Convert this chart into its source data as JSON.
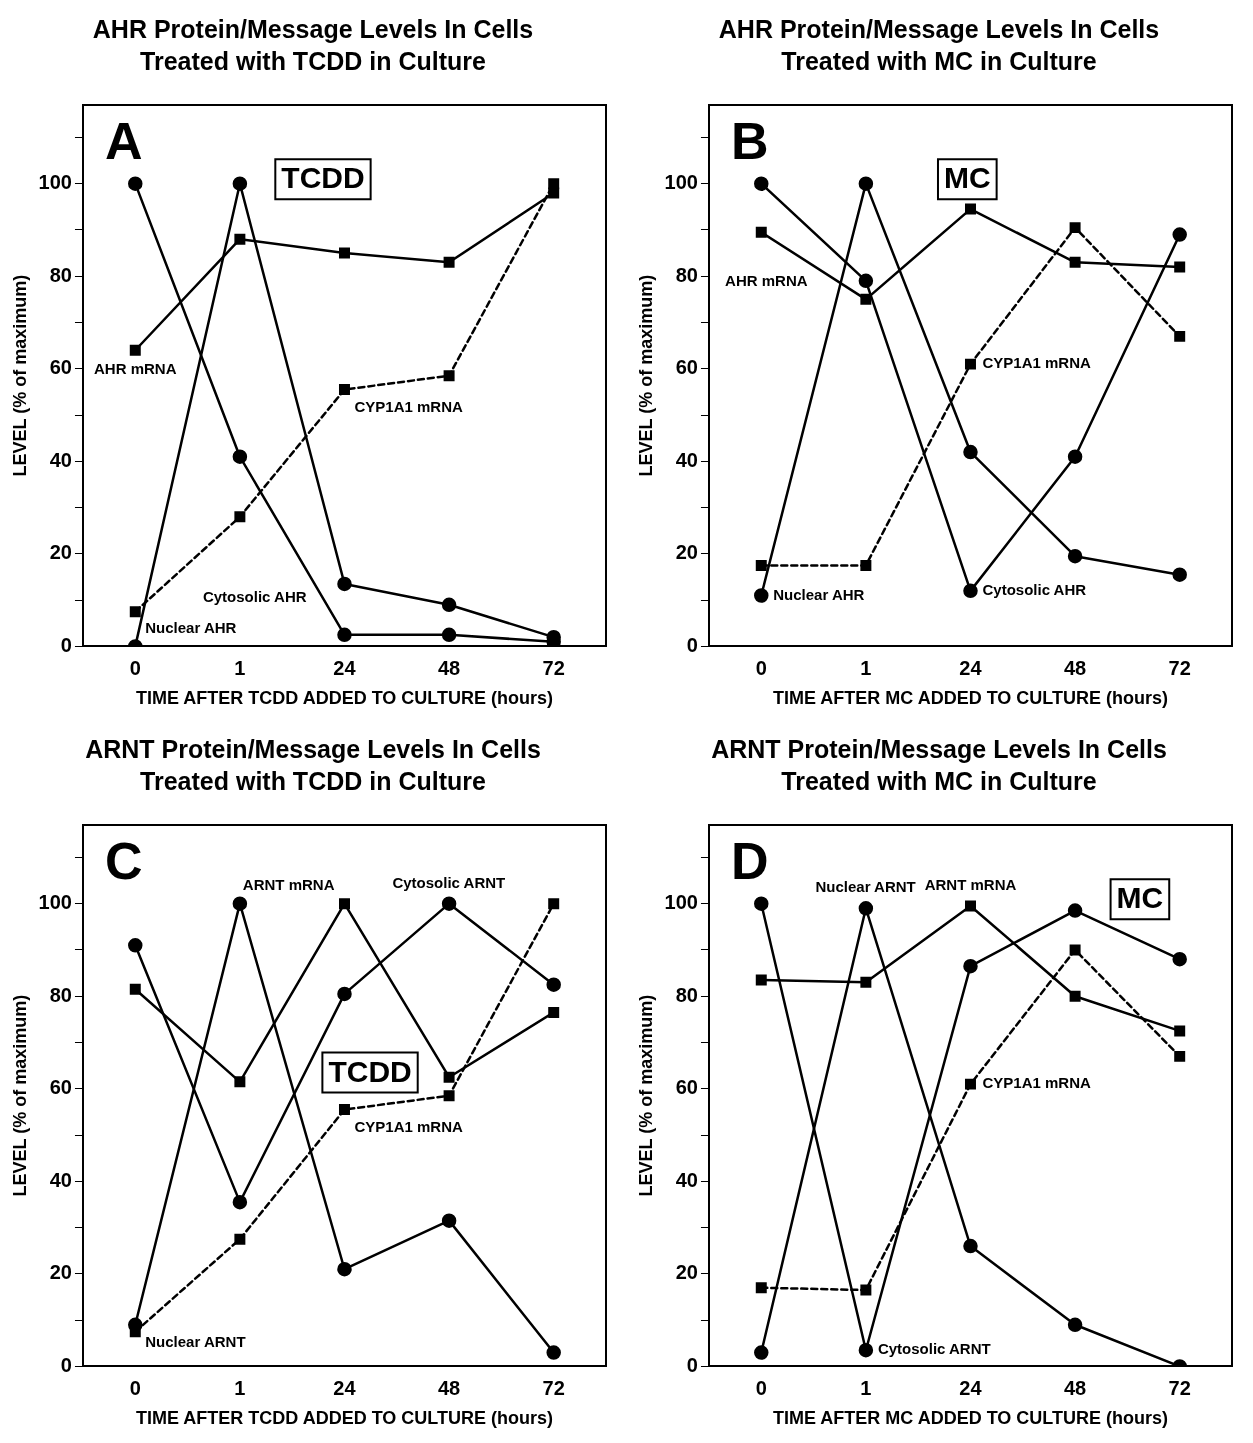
{
  "chart_data": [
    {
      "type": "line",
      "title": "AHR Protein/Message Levels In Cells Treated with TCDD in Culture",
      "xlabel": "TIME AFTER TCDD ADDED TO CULTURE (hours)",
      "ylabel": "LEVEL (% of maximum)",
      "categories": [
        "0",
        "1",
        "24",
        "48",
        "72"
      ],
      "series": [
        {
          "name": "Cytosolic AHR",
          "color": "#000000",
          "marker": "circle",
          "line_style": "solid",
          "values": [
            100,
            41,
            2.5,
            2.5,
            1
          ]
        },
        {
          "name": "Nuclear AHR",
          "color": "#000000",
          "marker": "circle",
          "line_style": "solid",
          "values": [
            0,
            100,
            13.5,
            9,
            2
          ]
        },
        {
          "name": "AHR mRNA",
          "color": "#000000",
          "marker": "square",
          "line_style": "solid",
          "values": [
            64,
            88,
            85,
            83,
            98
          ]
        },
        {
          "name": "CYP1A1 mRNA",
          "color": "#000000",
          "marker": "square",
          "line_style": "dashed",
          "values": [
            7.5,
            28,
            55.5,
            58.5,
            100
          ]
        }
      ],
      "ylim": [
        0,
        117
      ],
      "yticks": [
        0,
        {
          "value": 10,
          "label": null
        },
        20,
        {
          "value": 30,
          "label": null
        },
        40,
        {
          "value": 50,
          "label": null
        },
        60,
        {
          "value": 70,
          "label": null
        },
        80,
        {
          "value": 90,
          "label": null
        },
        100,
        {
          "value": 110,
          "label": null
        }
      ],
      "grid": false,
      "legend": false,
      "annotations": [
        "A",
        "TCDD"
      ]
    },
    {
      "type": "line",
      "title": "AHR Protein/Message Levels In Cells Treated with MC in Culture",
      "xlabel": "TIME AFTER MC ADDED TO CULTURE (hours)",
      "ylabel": "LEVEL (% of maximum)",
      "categories": [
        "0",
        "1",
        "24",
        "48",
        "72"
      ],
      "series": [
        {
          "name": "Cytosolic AHR",
          "color": "#000000",
          "marker": "circle",
          "line_style": "solid",
          "values": [
            100,
            79,
            12,
            41,
            89
          ]
        },
        {
          "name": "Nuclear AHR",
          "color": "#000000",
          "marker": "circle",
          "line_style": "solid",
          "values": [
            11,
            100,
            42,
            19.5,
            15.5
          ]
        },
        {
          "name": "AHR mRNA",
          "color": "#000000",
          "marker": "square",
          "line_style": "solid",
          "values": [
            89.5,
            75,
            94.5,
            83,
            82
          ]
        },
        {
          "name": "CYP1A1 mRNA",
          "color": "#000000",
          "marker": "square",
          "line_style": "dashed",
          "values": [
            17.5,
            17.5,
            61,
            90.5,
            67
          ]
        }
      ],
      "ylim": [
        0,
        117
      ],
      "yticks": [
        0,
        {
          "value": 10,
          "label": null
        },
        20,
        {
          "value": 30,
          "label": null
        },
        40,
        {
          "value": 50,
          "label": null
        },
        60,
        {
          "value": 70,
          "label": null
        },
        80,
        {
          "value": 90,
          "label": null
        },
        100,
        {
          "value": 110,
          "label": null
        }
      ],
      "grid": false,
      "legend": false,
      "annotations": [
        "B",
        "MC"
      ]
    },
    {
      "type": "line",
      "title": "ARNT Protein/Message Levels In Cells Treated with TCDD in Culture",
      "xlabel": "TIME AFTER TCDD ADDED TO CULTURE (hours)",
      "ylabel": "LEVEL (% of maximum)",
      "categories": [
        "0",
        "1",
        "24",
        "48",
        "72"
      ],
      "series": [
        {
          "name": "Cytosolic ARNT",
          "color": "#000000",
          "marker": "circle",
          "line_style": "solid",
          "values": [
            91,
            35.5,
            80.5,
            100,
            82.5
          ]
        },
        {
          "name": "Nuclear ARNT",
          "color": "#000000",
          "marker": "circle",
          "line_style": "solid",
          "values": [
            9,
            100,
            21,
            31.5,
            3
          ]
        },
        {
          "name": "ARNT mRNA",
          "color": "#000000",
          "marker": "square",
          "line_style": "solid",
          "values": [
            81.5,
            61.5,
            100,
            62.5,
            76.5
          ]
        },
        {
          "name": "CYP1A1 mRNA",
          "color": "#000000",
          "marker": "square",
          "line_style": "dashed",
          "values": [
            7.5,
            27.5,
            55.5,
            58.5,
            100
          ]
        }
      ],
      "ylim": [
        0,
        117
      ],
      "yticks": [
        0,
        {
          "value": 10,
          "label": null
        },
        20,
        {
          "value": 30,
          "label": null
        },
        40,
        {
          "value": 50,
          "label": null
        },
        60,
        {
          "value": 70,
          "label": null
        },
        80,
        {
          "value": 90,
          "label": null
        },
        100,
        {
          "value": 110,
          "label": null
        }
      ],
      "grid": false,
      "legend": false,
      "annotations": [
        "C",
        "TCDD"
      ]
    },
    {
      "type": "line",
      "title": "ARNT Protein/Message Levels In Cells Treated with MC in Culture",
      "xlabel": "TIME AFTER MC ADDED TO CULTURE (hours)",
      "ylabel": "LEVEL (% of maximum)",
      "categories": [
        "0",
        "1",
        "24",
        "48",
        "72"
      ],
      "series": [
        {
          "name": "Cytosolic ARNT",
          "color": "#000000",
          "marker": "circle",
          "line_style": "solid",
          "values": [
            100,
            3.5,
            86.5,
            98.5,
            88
          ]
        },
        {
          "name": "Nuclear ARNT",
          "color": "#000000",
          "marker": "circle",
          "line_style": "solid",
          "values": [
            3,
            99,
            26,
            9,
            0
          ]
        },
        {
          "name": "ARNT mRNA",
          "color": "#000000",
          "marker": "square",
          "line_style": "solid",
          "values": [
            83.5,
            83,
            99.5,
            80,
            72.5
          ]
        },
        {
          "name": "CYP1A1 mRNA",
          "color": "#000000",
          "marker": "square",
          "line_style": "dashed",
          "values": [
            17,
            16.5,
            61,
            90,
            67
          ]
        }
      ],
      "ylim": [
        0,
        117
      ],
      "yticks": [
        0,
        {
          "value": 10,
          "label": null
        },
        20,
        {
          "value": 30,
          "label": null
        },
        40,
        {
          "value": 50,
          "label": null
        },
        60,
        {
          "value": 70,
          "label": null
        },
        80,
        {
          "value": 90,
          "label": null
        },
        100,
        {
          "value": 110,
          "label": null
        }
      ],
      "grid": false,
      "legend": false,
      "annotations": [
        "D",
        "MC"
      ]
    }
  ]
}
